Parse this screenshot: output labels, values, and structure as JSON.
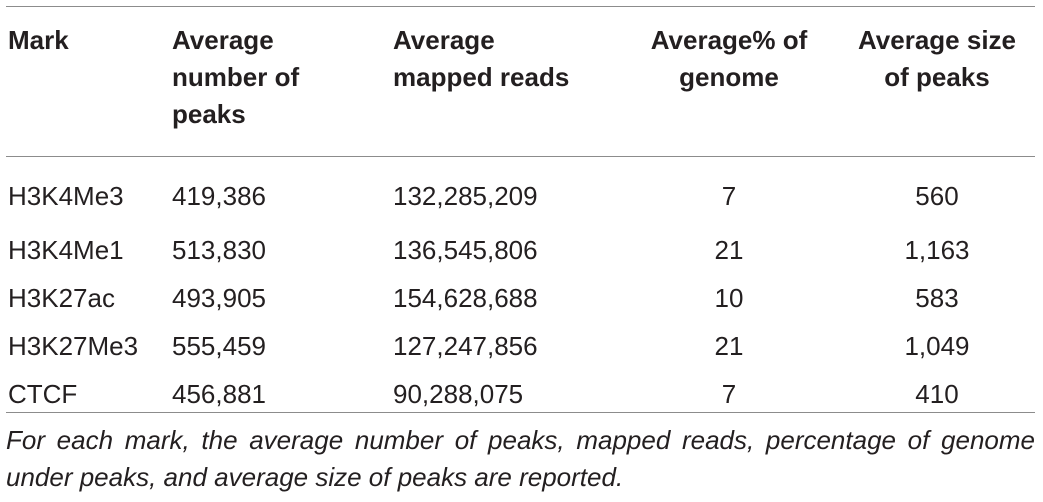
{
  "table": {
    "headers": {
      "mark": "Mark",
      "peaks_line1": "Average",
      "peaks_line2": "number of",
      "peaks_line3": "peaks",
      "reads_line1": "Average",
      "reads_line2": "mapped reads",
      "pct_line1": "Average% of",
      "pct_line2": "genome",
      "size_line1": "Average size",
      "size_line2": "of peaks"
    },
    "rows": [
      {
        "mark": "H3K4Me3",
        "peaks": "419,386",
        "reads": "132,285,209",
        "pct": "7",
        "size": "560"
      },
      {
        "mark": "H3K4Me1",
        "peaks": "513,830",
        "reads": "136,545,806",
        "pct": "21",
        "size": "1,163"
      },
      {
        "mark": "H3K27ac",
        "peaks": "493,905",
        "reads": "154,628,688",
        "pct": "10",
        "size": "583"
      },
      {
        "mark": "H3K27Me3",
        "peaks": "555,459",
        "reads": "127,247,856",
        "pct": "21",
        "size": "1,049"
      },
      {
        "mark": "CTCF",
        "peaks": "456,881",
        "reads": "90,288,075",
        "pct": "7",
        "size": "410"
      }
    ],
    "footnote": "For each mark, the average number of peaks, mapped reads, percentage of genome under peaks, and average size of peaks are reported."
  }
}
